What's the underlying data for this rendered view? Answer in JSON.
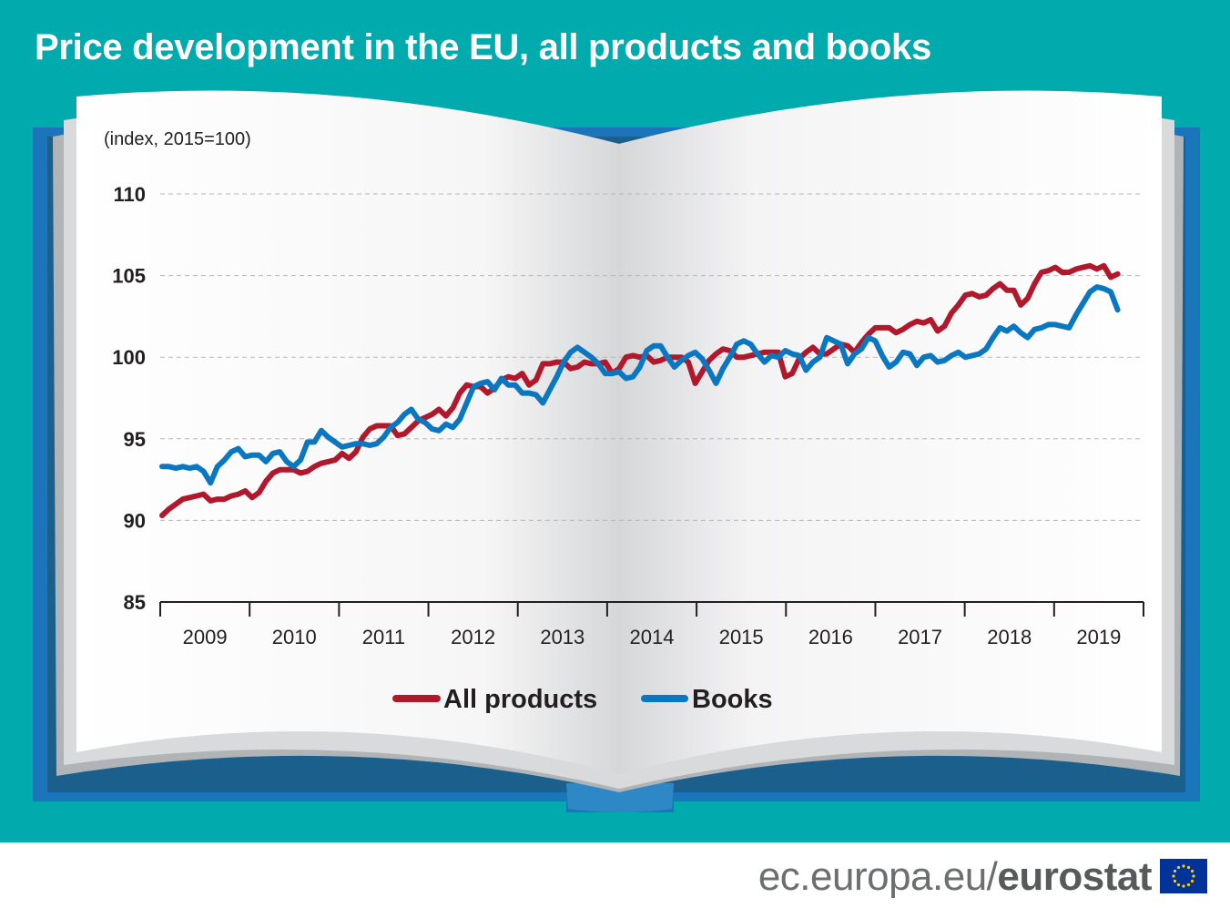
{
  "page": {
    "title": "Price development in the EU, all products and books",
    "footer_site": "ec.europa.eu/",
    "footer_brand": "eurostat"
  },
  "colors": {
    "background_teal": "#00aaad",
    "book_cover_blue": "#1b75bb",
    "book_cover_dark": "#1b5f8c",
    "all_products": "#b2182b",
    "books": "#0b77c0",
    "eu_flag_blue": "#003399",
    "eu_flag_star": "#ffcc00"
  },
  "chart_data": {
    "type": "line",
    "unit_label": "(index, 2015=100)",
    "ylim": [
      85,
      110
    ],
    "yticks": [
      85,
      90,
      95,
      100,
      105,
      110
    ],
    "grid": true,
    "legend": "bottom-center",
    "year_labels": [
      "2009",
      "2010",
      "2011",
      "2012",
      "2013",
      "2014",
      "2015",
      "2016",
      "2017",
      "2018",
      "2019"
    ],
    "x_start": "2009-01",
    "x_end": "2019-12",
    "series": [
      {
        "name": "All products",
        "icon": "red-line-legend-icon",
        "values": [
          90.3,
          90.7,
          91.0,
          91.3,
          91.4,
          91.5,
          91.6,
          91.2,
          91.3,
          91.3,
          91.5,
          91.6,
          91.8,
          91.4,
          91.7,
          92.4,
          92.9,
          93.1,
          93.1,
          93.1,
          92.9,
          93.0,
          93.3,
          93.5,
          93.6,
          93.7,
          94.1,
          93.8,
          94.2,
          95.1,
          95.6,
          95.8,
          95.8,
          95.8,
          95.2,
          95.3,
          95.7,
          96.1,
          96.3,
          96.5,
          96.8,
          96.4,
          96.9,
          97.8,
          98.3,
          98.2,
          98.2,
          97.8,
          98.1,
          98.6,
          98.8,
          98.7,
          99.0,
          98.3,
          98.6,
          99.6,
          99.6,
          99.7,
          99.7,
          99.3,
          99.4,
          99.7,
          99.6,
          99.6,
          99.7,
          99.0,
          99.3,
          100.0,
          100.1,
          100.0,
          100.1,
          99.7,
          99.8,
          100.0,
          100.0,
          100.0,
          99.7,
          98.4,
          99.1,
          99.8,
          100.2,
          100.5,
          100.4,
          100.0,
          100.0,
          100.1,
          100.2,
          100.3,
          100.3,
          100.3,
          98.8,
          99.0,
          99.9,
          100.3,
          100.6,
          100.2,
          100.2,
          100.5,
          100.8,
          100.7,
          100.3,
          100.9,
          101.4,
          101.8,
          101.8,
          101.8,
          101.5,
          101.7,
          102.0,
          102.2,
          102.1,
          102.3,
          101.6,
          101.9,
          102.7,
          103.2,
          103.8,
          103.9,
          103.7,
          103.8,
          104.2,
          104.5,
          104.1,
          104.1,
          103.2,
          103.6,
          104.5,
          105.2,
          105.3,
          105.5,
          105.2,
          105.2,
          105.4,
          105.5,
          105.6,
          105.4,
          105.6,
          104.9,
          105.1
        ]
      },
      {
        "name": "Books",
        "icon": "blue-line-legend-icon",
        "values": [
          93.3,
          93.3,
          93.2,
          93.3,
          93.2,
          93.3,
          93.0,
          92.3,
          93.3,
          93.7,
          94.2,
          94.4,
          93.9,
          94.0,
          94.0,
          93.6,
          94.1,
          94.2,
          93.6,
          93.3,
          93.7,
          94.8,
          94.8,
          95.5,
          95.1,
          94.8,
          94.5,
          94.6,
          94.7,
          94.7,
          94.6,
          94.7,
          95.1,
          95.7,
          96.0,
          96.5,
          96.8,
          96.2,
          96.0,
          95.6,
          95.5,
          95.9,
          95.7,
          96.2,
          97.2,
          98.2,
          98.4,
          98.5,
          98.0,
          98.7,
          98.3,
          98.3,
          97.8,
          97.8,
          97.7,
          97.2,
          98.0,
          98.8,
          99.7,
          100.3,
          100.6,
          100.3,
          100.0,
          99.6,
          99.0,
          99.0,
          99.1,
          98.7,
          98.8,
          99.4,
          100.4,
          100.7,
          100.7,
          100.0,
          99.4,
          99.8,
          100.1,
          100.3,
          99.9,
          99.2,
          98.4,
          99.3,
          100.0,
          100.8,
          101.0,
          100.8,
          100.2,
          99.7,
          100.1,
          100.0,
          100.4,
          100.2,
          100.1,
          99.2,
          99.7,
          100.0,
          101.2,
          101.0,
          100.8,
          99.6,
          100.2,
          100.5,
          101.2,
          101.0,
          100.1,
          99.4,
          99.7,
          100.3,
          100.2,
          99.5,
          100.0,
          100.1,
          99.7,
          99.8,
          100.1,
          100.3,
          100.0,
          100.1,
          100.2,
          100.5,
          101.2,
          101.8,
          101.6,
          101.9,
          101.5,
          101.2,
          101.7,
          101.8,
          102.0,
          102.0,
          101.9,
          101.8,
          102.6,
          103.3,
          104.0,
          104.3,
          104.2,
          104.0,
          102.9
        ]
      }
    ]
  }
}
